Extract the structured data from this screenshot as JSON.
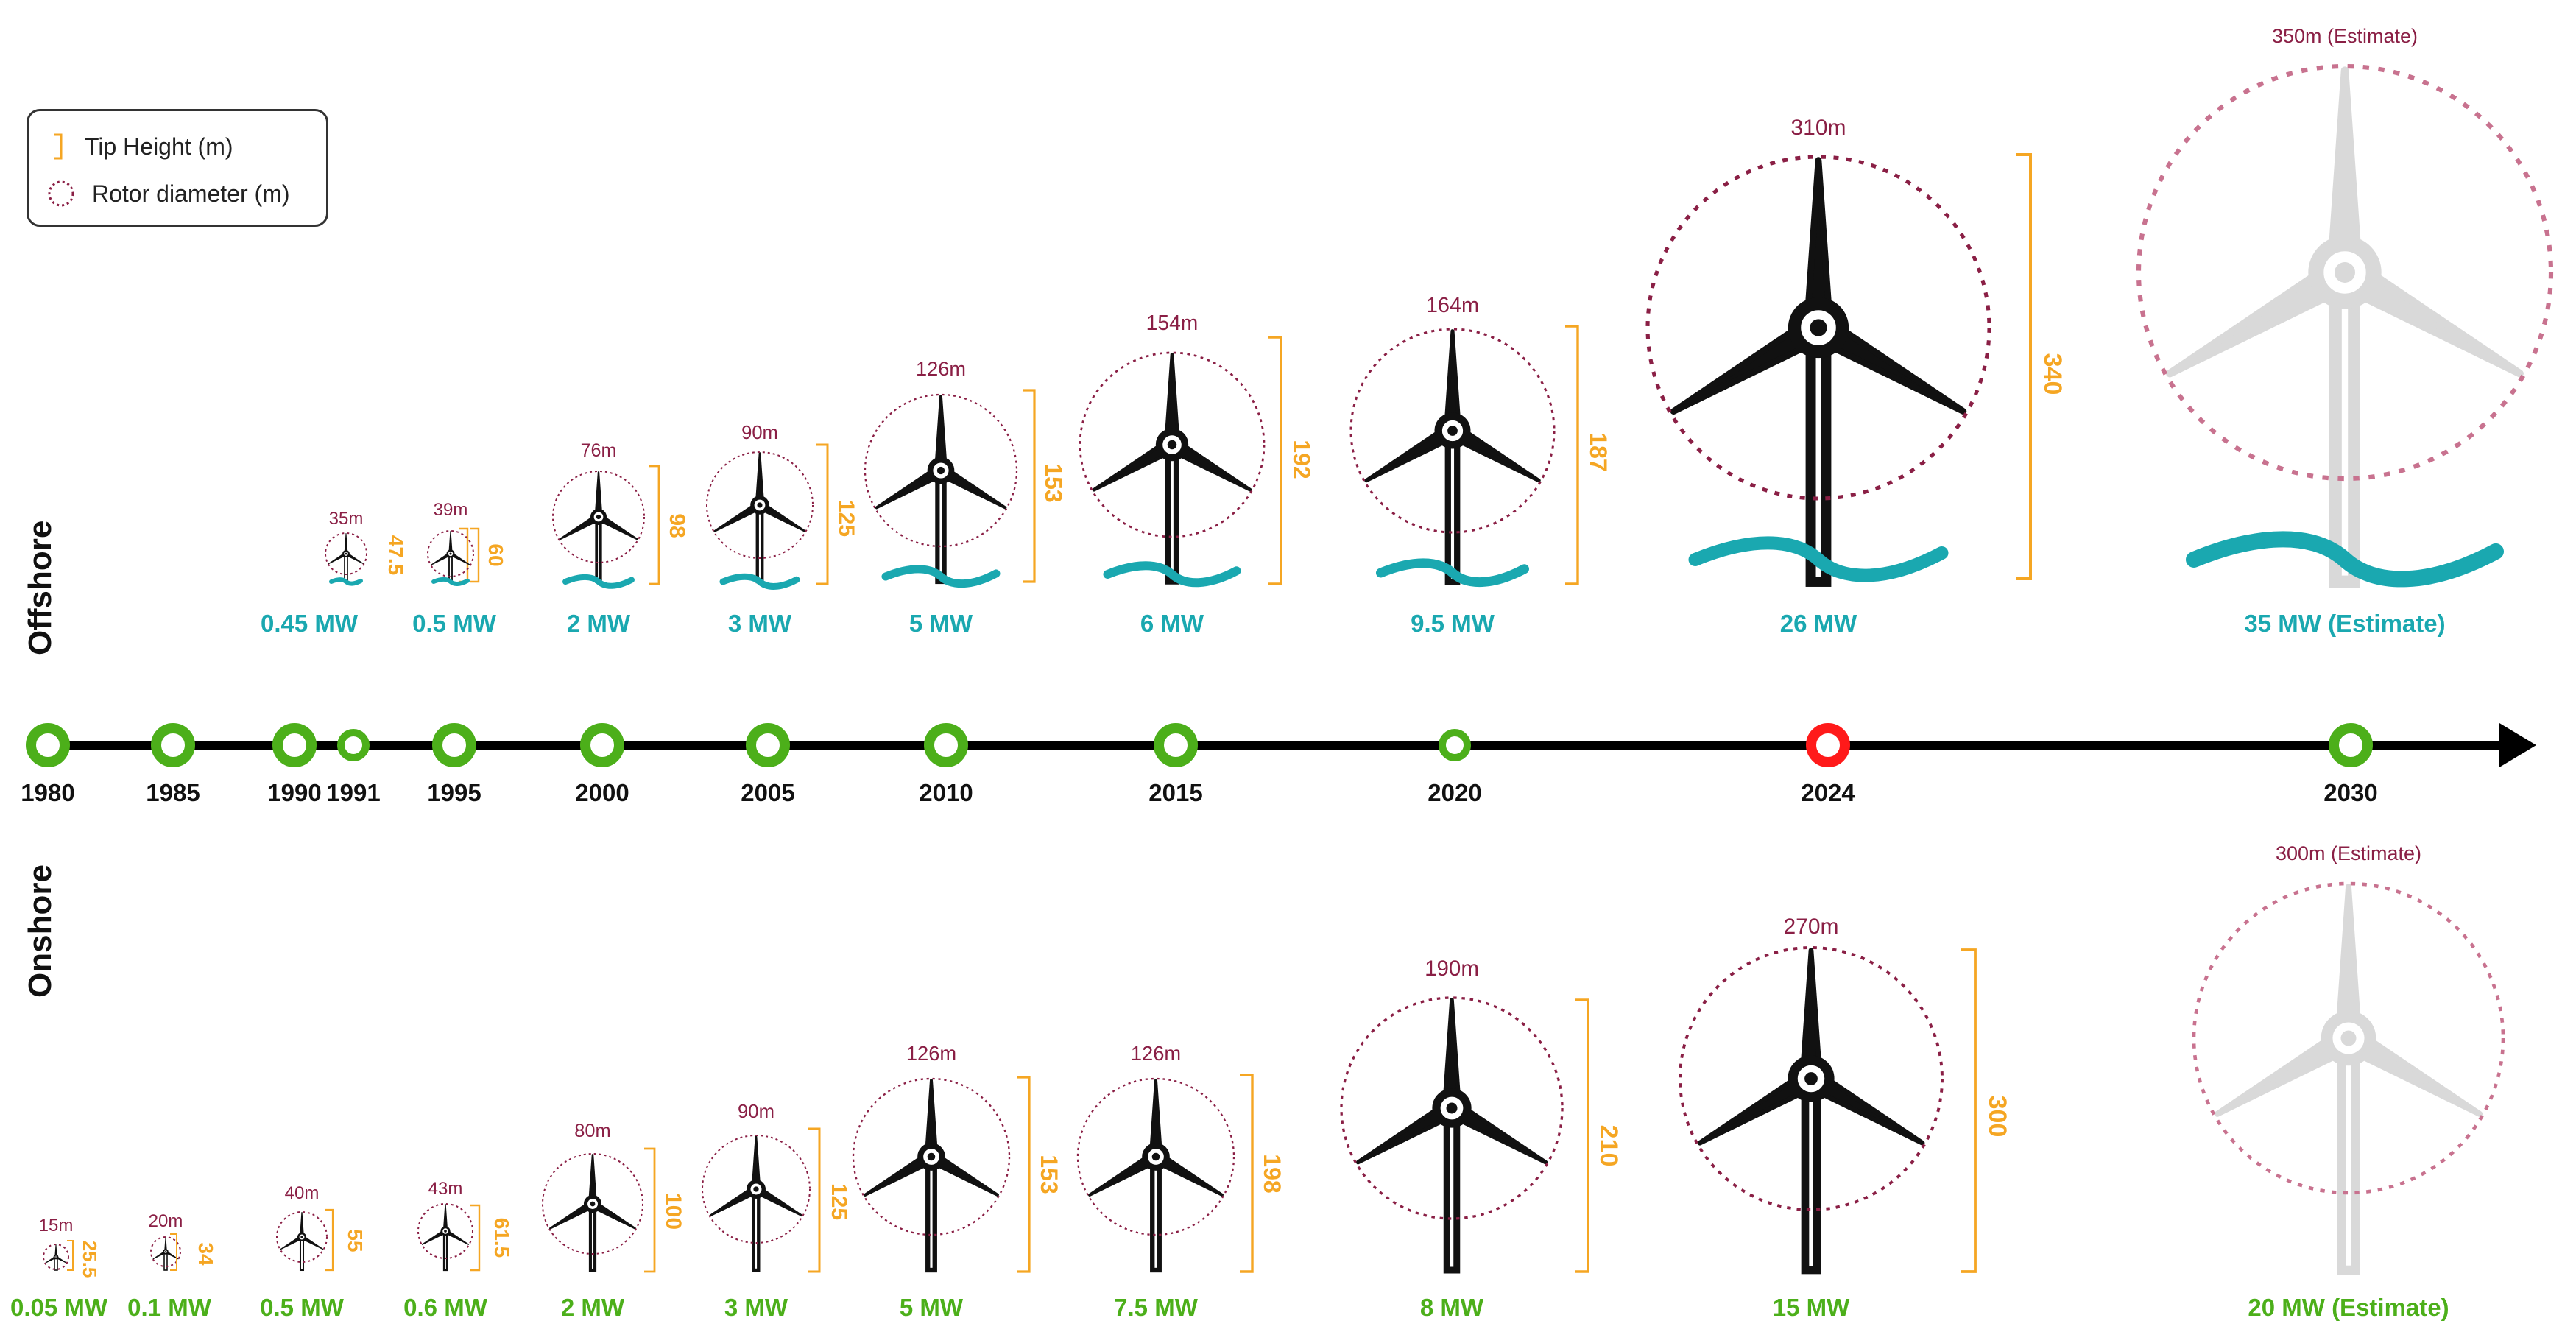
{
  "legend": {
    "tip_label": "Tip Height (m)",
    "rotor_label": "Rotor diameter (m)"
  },
  "sections": {
    "offshore": "Offshore",
    "onshore": "Onshore"
  },
  "colors": {
    "tip": "#f5a623",
    "rotor": "#8a1f45",
    "offshore": "#1aa8b0",
    "onshore": "#4caf1a",
    "axis": "#000000",
    "highlight": "#ff1a1a",
    "estimate": "#d9d9d9",
    "estimate_rotor": "#c8728f"
  },
  "timeline": {
    "years": [
      {
        "label": "1980",
        "highlight": false
      },
      {
        "label": "1985",
        "highlight": false
      },
      {
        "label": "1990",
        "highlight": false
      },
      {
        "label": "1991",
        "highlight": false
      },
      {
        "label": "1995",
        "highlight": false
      },
      {
        "label": "2000",
        "highlight": false
      },
      {
        "label": "2005",
        "highlight": false
      },
      {
        "label": "2010",
        "highlight": false
      },
      {
        "label": "2015",
        "highlight": false
      },
      {
        "label": "2020",
        "highlight": false
      },
      {
        "label": "2024",
        "highlight": true
      },
      {
        "label": "2030",
        "highlight": false
      }
    ]
  },
  "offshore_turbines": [
    {
      "rotor": "35m",
      "tip": "47.5",
      "power": "0.45 MW",
      "estimate": false
    },
    {
      "rotor": "39m",
      "tip": "60",
      "power": "0.5 MW",
      "estimate": false
    },
    {
      "rotor": "76m",
      "tip": "98",
      "power": "2 MW",
      "estimate": false
    },
    {
      "rotor": "90m",
      "tip": "125",
      "power": "3 MW",
      "estimate": false
    },
    {
      "rotor": "126m",
      "tip": "153",
      "power": "5 MW",
      "estimate": false
    },
    {
      "rotor": "154m",
      "tip": "192",
      "power": "6 MW",
      "estimate": false
    },
    {
      "rotor": "164m",
      "tip": "187",
      "power": "9.5 MW",
      "estimate": false
    },
    {
      "rotor": "310m",
      "tip": "340",
      "power": "26 MW",
      "estimate": false
    },
    {
      "rotor": "350m (Estimate)",
      "tip": "",
      "power": "35 MW (Estimate)",
      "estimate": true
    }
  ],
  "onshore_turbines": [
    {
      "rotor": "15m",
      "tip": "25.5",
      "power": "0.05 MW",
      "estimate": false
    },
    {
      "rotor": "20m",
      "tip": "34",
      "power": "0.1 MW",
      "estimate": false
    },
    {
      "rotor": "40m",
      "tip": "55",
      "power": "0.5 MW",
      "estimate": false
    },
    {
      "rotor": "43m",
      "tip": "61.5",
      "power": "0.6 MW",
      "estimate": false
    },
    {
      "rotor": "80m",
      "tip": "100",
      "power": "2 MW",
      "estimate": false
    },
    {
      "rotor": "90m",
      "tip": "125",
      "power": "3 MW",
      "estimate": false
    },
    {
      "rotor": "126m",
      "tip": "153",
      "power": "5 MW",
      "estimate": false
    },
    {
      "rotor": "126m",
      "tip": "198",
      "power": "7.5 MW",
      "estimate": false
    },
    {
      "rotor": "190m",
      "tip": "210",
      "power": "8 MW",
      "estimate": false
    },
    {
      "rotor": "270m",
      "tip": "300",
      "power": "15 MW",
      "estimate": false
    },
    {
      "rotor": "300m (Estimate)",
      "tip": "",
      "power": "20 MW (Estimate)",
      "estimate": true
    }
  ]
}
